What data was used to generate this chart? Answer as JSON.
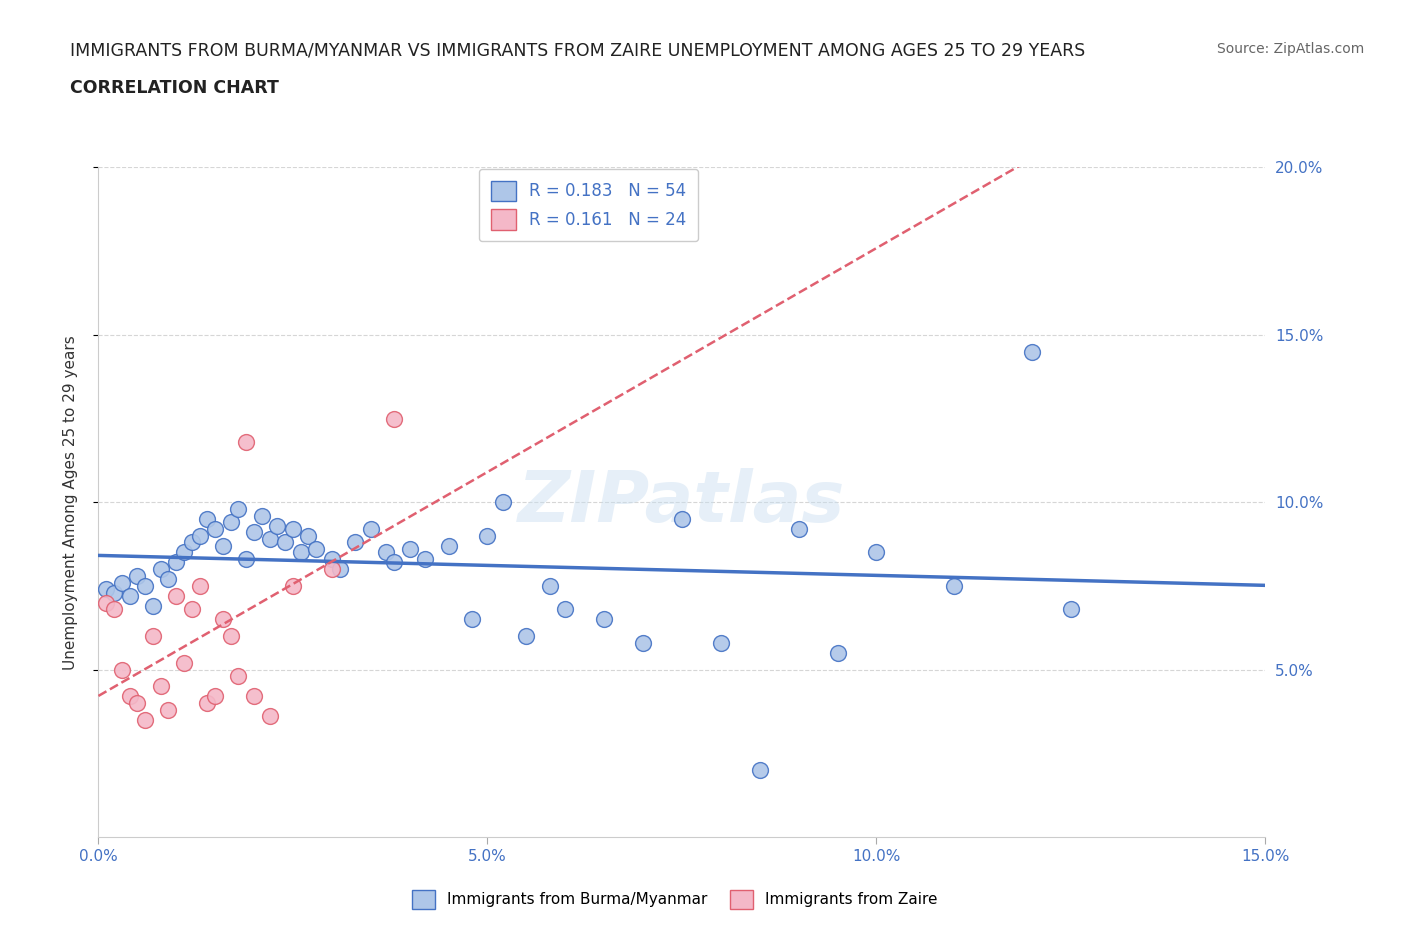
{
  "title_line1": "IMMIGRANTS FROM BURMA/MYANMAR VS IMMIGRANTS FROM ZAIRE UNEMPLOYMENT AMONG AGES 25 TO 29 YEARS",
  "title_line2": "CORRELATION CHART",
  "source": "Source: ZipAtlas.com",
  "ylabel": "Unemployment Among Ages 25 to 29 years",
  "xlim": [
    0.0,
    0.15
  ],
  "ylim": [
    0.0,
    0.2
  ],
  "xticks": [
    0.0,
    0.05,
    0.1,
    0.15
  ],
  "xticklabels": [
    "0.0%",
    "5.0%",
    "10.0%",
    "15.0%"
  ],
  "ytick_right_labels": [
    "20.0%",
    "15.0%",
    "10.0%",
    "5.0%"
  ],
  "ytick_right_positions": [
    0.2,
    0.15,
    0.1,
    0.05
  ],
  "watermark": "ZIPatlas",
  "legend_entries": [
    {
      "label": "R = 0.183   N = 54",
      "color": "#aec6e8"
    },
    {
      "label": "R = 0.161   N = 24",
      "color": "#f4b8c8"
    }
  ],
  "burma_scatter_x": [
    0.001,
    0.002,
    0.003,
    0.004,
    0.005,
    0.006,
    0.007,
    0.008,
    0.009,
    0.01,
    0.011,
    0.012,
    0.013,
    0.014,
    0.015,
    0.016,
    0.017,
    0.018,
    0.019,
    0.02,
    0.021,
    0.022,
    0.023,
    0.024,
    0.025,
    0.026,
    0.027,
    0.028,
    0.03,
    0.031,
    0.033,
    0.035,
    0.037,
    0.038,
    0.04,
    0.042,
    0.045,
    0.048,
    0.05,
    0.052,
    0.055,
    0.058,
    0.06,
    0.065,
    0.07,
    0.075,
    0.08,
    0.085,
    0.09,
    0.095,
    0.1,
    0.11,
    0.12,
    0.125
  ],
  "burma_scatter_y": [
    0.074,
    0.073,
    0.076,
    0.072,
    0.078,
    0.075,
    0.069,
    0.08,
    0.077,
    0.082,
    0.085,
    0.088,
    0.09,
    0.095,
    0.092,
    0.087,
    0.094,
    0.098,
    0.083,
    0.091,
    0.096,
    0.089,
    0.093,
    0.088,
    0.092,
    0.085,
    0.09,
    0.086,
    0.083,
    0.08,
    0.088,
    0.092,
    0.085,
    0.082,
    0.086,
    0.083,
    0.087,
    0.065,
    0.09,
    0.1,
    0.06,
    0.075,
    0.068,
    0.065,
    0.058,
    0.095,
    0.058,
    0.02,
    0.092,
    0.055,
    0.085,
    0.075,
    0.145,
    0.068
  ],
  "zaire_scatter_x": [
    0.001,
    0.002,
    0.003,
    0.004,
    0.005,
    0.006,
    0.007,
    0.008,
    0.009,
    0.01,
    0.011,
    0.012,
    0.013,
    0.014,
    0.015,
    0.016,
    0.017,
    0.018,
    0.019,
    0.02,
    0.022,
    0.025,
    0.03,
    0.038
  ],
  "zaire_scatter_y": [
    0.07,
    0.068,
    0.05,
    0.042,
    0.04,
    0.035,
    0.06,
    0.045,
    0.038,
    0.072,
    0.052,
    0.068,
    0.075,
    0.04,
    0.042,
    0.065,
    0.06,
    0.048,
    0.118,
    0.042,
    0.036,
    0.075,
    0.08,
    0.125
  ],
  "burma_color": "#4472c4",
  "burma_scatter_color": "#aec6e8",
  "zaire_color": "#e06070",
  "zaire_scatter_color": "#f4b8c8",
  "grid_color": "#cccccc",
  "background_color": "#ffffff"
}
